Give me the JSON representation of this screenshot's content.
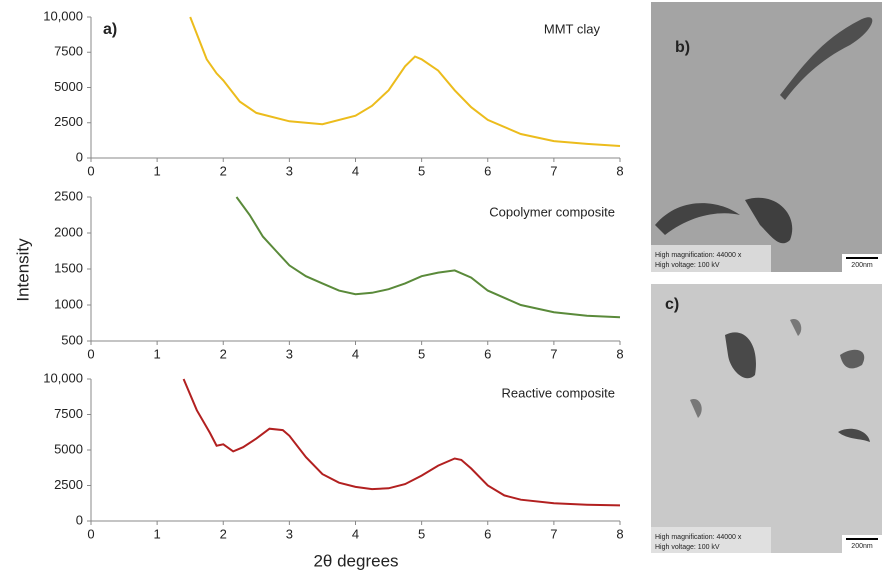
{
  "figure": {
    "label": "a)",
    "ylabel": "Intensity",
    "xlabel": "2θ degrees"
  },
  "chart_data": [
    {
      "type": "line",
      "title": "MMT clay",
      "x": [
        1.5,
        1.75,
        1.9,
        2.0,
        2.25,
        2.5,
        3.0,
        3.5,
        4.0,
        4.25,
        4.5,
        4.75,
        4.9,
        5.0,
        5.25,
        5.5,
        5.75,
        6.0,
        6.5,
        7.0,
        7.5,
        8.0
      ],
      "series": [
        {
          "color": "#ecbc1c",
          "values": [
            10000,
            7000,
            6000,
            5500,
            4000,
            3200,
            2600,
            2400,
            3000,
            3700,
            4800,
            6500,
            7200,
            7000,
            6200,
            4800,
            3600,
            2700,
            1700,
            1200,
            1000,
            850
          ]
        }
      ],
      "xlim": [
        0,
        8
      ],
      "xticks": [
        0,
        1,
        2,
        3,
        4,
        5,
        6,
        7,
        8
      ],
      "ylim": [
        0,
        10000
      ],
      "yticks": [
        0,
        2500,
        5000,
        7500,
        {
          "value": 10000,
          "label": "10,000"
        }
      ]
    },
    {
      "type": "line",
      "title": "Copolymer composite",
      "x": [
        2.2,
        2.4,
        2.6,
        2.8,
        3.0,
        3.25,
        3.5,
        3.75,
        4.0,
        4.25,
        4.5,
        4.75,
        5.0,
        5.25,
        5.5,
        5.75,
        6.0,
        6.25,
        6.5,
        7.0,
        7.5,
        8.0
      ],
      "series": [
        {
          "color": "#5a8a3a",
          "values": [
            2500,
            2250,
            1950,
            1750,
            1550,
            1400,
            1300,
            1200,
            1150,
            1170,
            1220,
            1300,
            1400,
            1450,
            1480,
            1380,
            1200,
            1100,
            1000,
            900,
            850,
            830
          ]
        }
      ],
      "xlim": [
        0,
        8
      ],
      "xticks": [
        0,
        1,
        2,
        3,
        4,
        5,
        6,
        7,
        8
      ],
      "ylim": [
        500,
        2500
      ],
      "yticks": [
        500,
        1000,
        1500,
        2000,
        2500
      ]
    },
    {
      "type": "line",
      "title": "Reactive composite",
      "x": [
        1.4,
        1.6,
        1.8,
        1.9,
        2.0,
        2.15,
        2.3,
        2.5,
        2.7,
        2.9,
        3.0,
        3.25,
        3.5,
        3.75,
        4.0,
        4.25,
        4.5,
        4.75,
        5.0,
        5.25,
        5.5,
        5.6,
        5.75,
        6.0,
        6.25,
        6.5,
        7.0,
        7.5,
        8.0
      ],
      "series": [
        {
          "color": "#b22020",
          "values": [
            10000,
            7800,
            6200,
            5300,
            5400,
            4900,
            5200,
            5800,
            6500,
            6400,
            6000,
            4500,
            3300,
            2700,
            2400,
            2250,
            2300,
            2600,
            3200,
            3900,
            4400,
            4300,
            3700,
            2500,
            1800,
            1500,
            1250,
            1150,
            1100
          ]
        }
      ],
      "xlim": [
        0,
        8
      ],
      "xticks": [
        0,
        1,
        2,
        3,
        4,
        5,
        6,
        7,
        8
      ],
      "ylim": [
        0,
        10000
      ],
      "yticks": [
        0,
        2500,
        5000,
        7500,
        {
          "value": 10000,
          "label": "10,000"
        }
      ]
    }
  ],
  "panels": [
    {
      "label": "b)",
      "info1": "High magnification: 44000 x",
      "info2": "High voltage: 100 kV",
      "scale": "200nm"
    },
    {
      "label": "c)",
      "info1": "High magnification: 44000 x",
      "info2": "High voltage: 100 kV",
      "scale": "200nm"
    }
  ]
}
